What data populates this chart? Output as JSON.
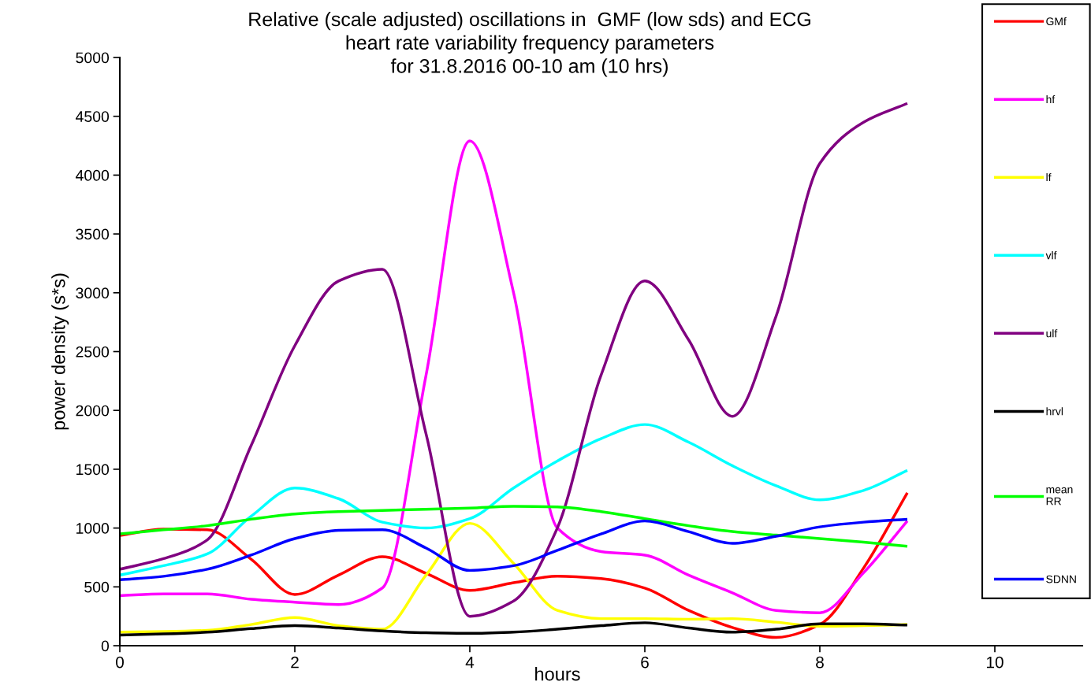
{
  "chart_data": {
    "type": "line",
    "title": "Relative (scale adjusted) oscillations in  GMF (low sds) and ECG\nheart rate variability frequency parameters\nfor 31.8.2016 00-10 am (10 hrs)",
    "xlabel": "hours",
    "ylabel": "power density (s*s)",
    "x": [
      0,
      0.5,
      1,
      1.5,
      2,
      2.5,
      3,
      3.5,
      4,
      4.5,
      5,
      5.5,
      6,
      6.5,
      7,
      7.5,
      8,
      8.5,
      9
    ],
    "xlim": [
      0,
      11
    ],
    "xticks": [
      0,
      2,
      4,
      6,
      8,
      10
    ],
    "ylim": [
      0,
      5000
    ],
    "yticks": [
      0,
      500,
      1000,
      1500,
      2000,
      2500,
      3000,
      3500,
      4000,
      4500,
      5000
    ],
    "grid": false,
    "legend": "right",
    "line_style": "solid",
    "marker": "none",
    "series": [
      {
        "name": "GMf",
        "color": "#ff0000",
        "values": [
          937,
          990,
          985,
          736,
          435,
          600,
          756,
          615,
          470,
          535,
          590,
          570,
          490,
          300,
          155,
          70,
          180,
          660,
          1300
        ]
      },
      {
        "name": "hf",
        "color": "#ff00ff",
        "values": [
          425,
          440,
          440,
          395,
          370,
          350,
          490,
          2300,
          4290,
          3000,
          1000,
          800,
          770,
          600,
          450,
          300,
          280,
          620,
          1060
        ]
      },
      {
        "name": "lf",
        "color": "#ffff00",
        "values": [
          115,
          120,
          130,
          180,
          240,
          170,
          140,
          600,
          1040,
          700,
          300,
          230,
          230,
          225,
          230,
          200,
          165,
          170,
          180
        ]
      },
      {
        "name": "vlf",
        "color": "#00ffff",
        "values": [
          600,
          680,
          780,
          1100,
          1340,
          1250,
          1050,
          1000,
          1080,
          1340,
          1570,
          1760,
          1880,
          1730,
          1530,
          1360,
          1240,
          1320,
          1490
        ]
      },
      {
        "name": "ulf",
        "color": "#800080",
        "values": [
          650,
          740,
          900,
          1700,
          2550,
          3100,
          3200,
          1800,
          250,
          380,
          1000,
          2300,
          3100,
          2600,
          1950,
          2800,
          4100,
          4450,
          4610
        ]
      },
      {
        "name": "hrvl",
        "color": "#000000",
        "values": [
          90,
          100,
          115,
          145,
          170,
          150,
          125,
          110,
          105,
          115,
          140,
          170,
          195,
          150,
          115,
          140,
          185,
          185,
          175
        ]
      },
      {
        "name": "mean RR",
        "color": "#00ff00",
        "values": [
          950,
          985,
          1020,
          1075,
          1120,
          1140,
          1150,
          1160,
          1170,
          1185,
          1180,
          1140,
          1080,
          1020,
          970,
          940,
          910,
          880,
          845
        ]
      },
      {
        "name": "SDNN",
        "color": "#0000ff",
        "values": [
          560,
          590,
          650,
          770,
          910,
          980,
          985,
          830,
          640,
          680,
          810,
          950,
          1060,
          970,
          870,
          930,
          1010,
          1050,
          1075
        ]
      }
    ]
  }
}
